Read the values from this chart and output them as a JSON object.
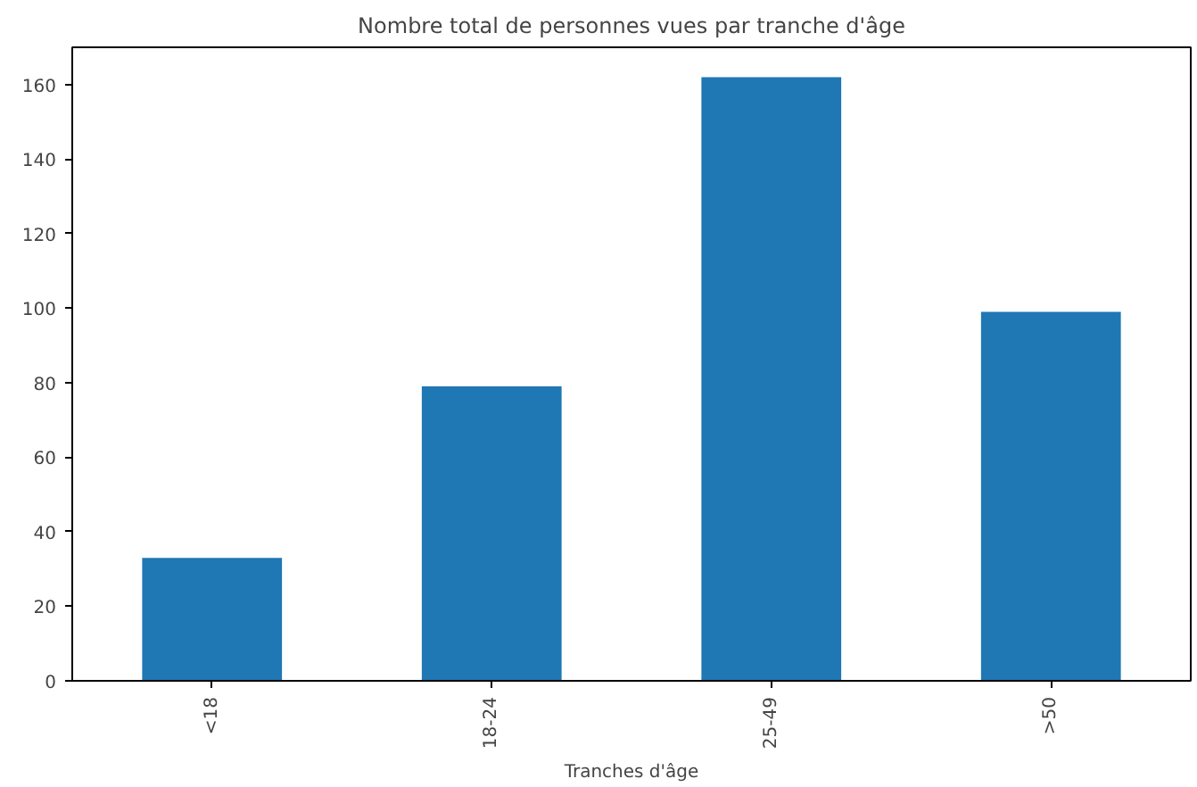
{
  "chart_data": {
    "type": "bar",
    "title": "Nombre total de personnes vues par tranche d'âge",
    "xlabel": "Tranches d'âge",
    "categories": [
      "<18",
      "18-24",
      "25-49",
      ">50"
    ],
    "values": [
      33,
      79,
      162,
      99
    ],
    "color": "#1f77b4",
    "ylim": [
      0,
      170
    ],
    "yticks": [
      0,
      20,
      40,
      60,
      80,
      100,
      120,
      140,
      160
    ],
    "grid": false
  }
}
